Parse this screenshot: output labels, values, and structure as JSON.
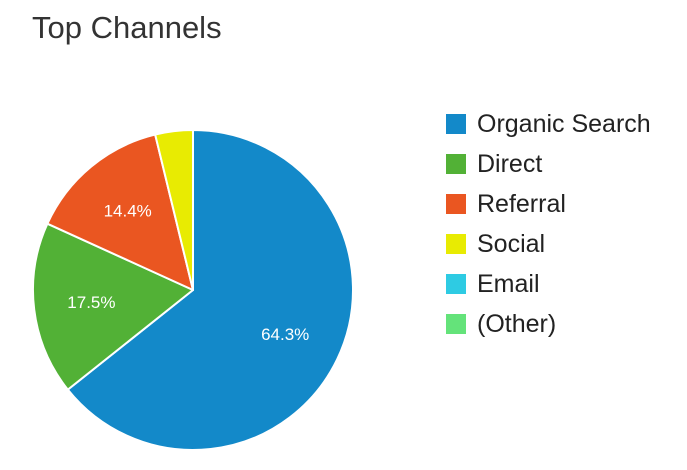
{
  "chart_data": {
    "type": "pie",
    "title": "Top Channels",
    "legend_position": "right",
    "slices": [
      {
        "label": "Organic Search",
        "value": 64.3,
        "data_label": "64.3%",
        "color": "#1389c9"
      },
      {
        "label": "Direct",
        "value": 17.5,
        "data_label": "17.5%",
        "color": "#52b136"
      },
      {
        "label": "Referral",
        "value": 14.4,
        "data_label": "14.4%",
        "color": "#ea5621"
      },
      {
        "label": "Social",
        "value": 3.8,
        "data_label": "",
        "color": "#e8eb02"
      },
      {
        "label": "Email",
        "value": 0,
        "data_label": "",
        "color": "#2ecbe3"
      },
      {
        "label": "(Other)",
        "value": 0,
        "data_label": "",
        "color": "#64e37a"
      }
    ]
  }
}
